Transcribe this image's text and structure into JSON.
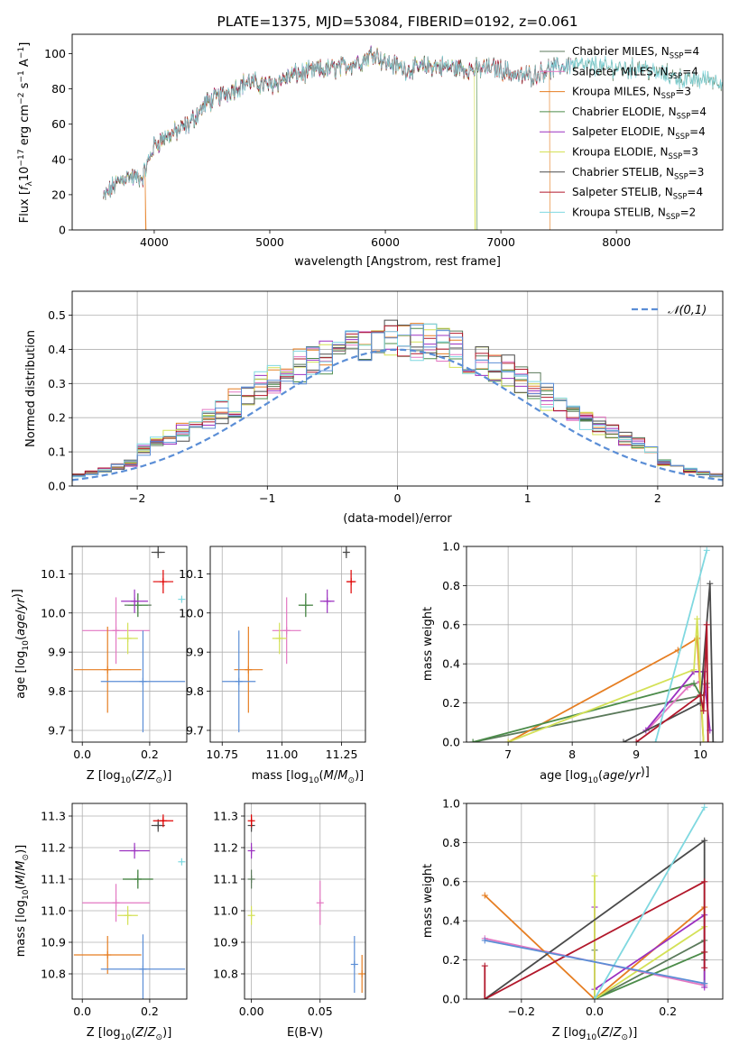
{
  "chart_data": [
    {
      "id": "spectrum",
      "type": "line",
      "title": "PLATE=1375, MJD=53084, FIBERID=0192, z=0.061",
      "xlabel": "wavelength [Angstrom, rest frame]",
      "ylabel_parts": [
        "Flux [",
        "f",
        "λ",
        "10",
        "−17",
        " erg cm",
        "−2",
        " s",
        "−1",
        " A",
        "−1",
        "]"
      ],
      "xlim": [
        3290,
        8920
      ],
      "ylim": [
        0,
        111
      ],
      "xticks": [
        4000,
        5000,
        6000,
        7000,
        8000
      ],
      "yticks": [
        0,
        20,
        40,
        60,
        80,
        100
      ],
      "legend_position": "upper right",
      "curve_anchors": {
        "x": [
          3560,
          3650,
          3750,
          3900,
          4000,
          4100,
          4200,
          4300,
          4450,
          4600,
          4800,
          5000,
          5200,
          5400,
          5600,
          5800,
          5900,
          6000,
          6200,
          6400,
          6600,
          6800,
          6950,
          7050,
          7150,
          7300,
          7400,
          7500,
          7600,
          7700,
          7800,
          7900,
          8000,
          8100,
          8200,
          8300,
          8400,
          8500,
          8600,
          8700,
          8800,
          8920
        ],
        "y": [
          18,
          25,
          30,
          30,
          48,
          53,
          56,
          60,
          72,
          77,
          84,
          82,
          88,
          90,
          92,
          96,
          101,
          95,
          91,
          93,
          92,
          91,
          92,
          90,
          87,
          88,
          91,
          92,
          94,
          93,
          93,
          92,
          92,
          91,
          93,
          90,
          88,
          87,
          85,
          85,
          86,
          84
        ]
      },
      "series": [
        {
          "name": "Chabrier MILES, N_SSP=4",
          "label": [
            "Chabrier MILES, N",
            "SSP",
            "=4"
          ],
          "color": "#5b7a5b",
          "x_range": [
            3560,
            8920
          ]
        },
        {
          "name": "Salpeter MILES, N_SSP=4",
          "label": [
            "Salpeter MILES, N",
            "SSP",
            "=4"
          ],
          "color": "#e377c2",
          "x_range": [
            3560,
            7610
          ]
        },
        {
          "name": "Kroupa MILES, N_SSP=3",
          "label": [
            "Kroupa MILES, N",
            "SSP",
            "=3"
          ],
          "color": "#e67e22",
          "x_range": [
            3560,
            7420
          ],
          "drops": [
            [
              3920,
              0
            ],
            [
              7420,
              0
            ]
          ]
        },
        {
          "name": "Chabrier ELODIE, N_SSP=4",
          "label": [
            "Chabrier ELODIE, N",
            "SSP",
            "=4"
          ],
          "color": "#4c8c4a",
          "x_range": [
            3560,
            6790
          ],
          "drops": [
            [
              6790,
              0
            ]
          ]
        },
        {
          "name": "Salpeter ELODIE, N_SSP=4",
          "label": [
            "Salpeter ELODIE, N",
            "SSP",
            "=4"
          ],
          "color": "#9b30c0",
          "x_range": [
            3560,
            6790
          ]
        },
        {
          "name": "Kroupa ELODIE, N_SSP=3",
          "label": [
            "Kroupa ELODIE, N",
            "SSP",
            "=3"
          ],
          "color": "#d4e157",
          "x_range": [
            3560,
            6790
          ],
          "drops": [
            [
              6770,
              0
            ]
          ]
        },
        {
          "name": "Chabrier STELIB, N_SSP=3",
          "label": [
            "Chabrier STELIB, N",
            "SSP",
            "=3"
          ],
          "color": "#4a4a4a",
          "x_range": [
            3560,
            7600
          ]
        },
        {
          "name": "Salpeter STELIB, N_SSP=4",
          "label": [
            "Salpeter STELIB, N",
            "SSP",
            "=4"
          ],
          "color": "#b2182b",
          "x_range": [
            3560,
            7400
          ]
        },
        {
          "name": "Kroupa STELIB, N_SSP=2",
          "label": [
            "Kroupa STELIB, N",
            "SSP",
            "=2"
          ],
          "color": "#7fd8e0",
          "x_range": [
            3560,
            8920
          ]
        }
      ]
    },
    {
      "id": "residual_hist",
      "type": "area",
      "xlabel": "(data-model)/error",
      "ylabel": "Normed distribution",
      "xlim": [
        -2.5,
        2.5
      ],
      "ylim": [
        0,
        0.57
      ],
      "xticks": [
        -2,
        -1,
        0,
        1,
        2
      ],
      "yticks": [
        0.0,
        0.1,
        0.2,
        0.3,
        0.4,
        0.5
      ],
      "grid": true,
      "reference_curve": {
        "name": "𝒩(0,1)",
        "mu": 0,
        "sigma": 1,
        "color": "#5b8ed6"
      },
      "bin_width": 0.1,
      "legend_position": "upper right"
    },
    {
      "id": "age_vs_Z",
      "type": "scatter",
      "xlabel": "Z [log10(Z/Z⊙)]",
      "ylabel": "age  [log10(age/yr)]",
      "xlim": [
        -0.03,
        0.31
      ],
      "ylim": [
        9.67,
        10.17
      ],
      "xticks": [
        0.0,
        0.2
      ],
      "yticks": [
        9.7,
        9.8,
        9.9,
        10.0,
        10.1
      ],
      "grid": true,
      "points": [
        {
          "series": "Chabrier MILES",
          "x": 0.165,
          "y": 10.02,
          "xerr": 0.04,
          "yerr": 0.03,
          "color": "#5b7a5b"
        },
        {
          "series": "Salpeter MILES",
          "x": 0.1,
          "y": 9.955,
          "xerr": 0.1,
          "yerr": 0.085,
          "color": "#e377c2"
        },
        {
          "series": "Kroupa MILES",
          "x": 0.075,
          "y": 9.855,
          "xerr": 0.1,
          "yerr": 0.11,
          "color": "#e67e22"
        },
        {
          "series": "Chabrier ELODIE",
          "x": 0.165,
          "y": 10.02,
          "xerr": 0.03,
          "yerr": 0.03,
          "color": "#4c8c4a"
        },
        {
          "series": "Salpeter ELODIE",
          "x": 0.155,
          "y": 10.03,
          "xerr": 0.04,
          "yerr": 0.03,
          "color": "#9b30c0"
        },
        {
          "series": "Kroupa ELODIE",
          "x": 0.135,
          "y": 9.935,
          "xerr": 0.03,
          "yerr": 0.04,
          "color": "#d4e157"
        },
        {
          "series": "Chabrier STELIB",
          "x": 0.225,
          "y": 10.155,
          "xerr": 0.02,
          "yerr": 0.015,
          "color": "#4a4a4a"
        },
        {
          "series": "Salpeter STELIB",
          "x": 0.24,
          "y": 10.08,
          "xerr": 0.03,
          "yerr": 0.03,
          "color": "#e00000"
        },
        {
          "series": "Kroupa MILES (low)",
          "x": 0.18,
          "y": 9.825,
          "xerr": 0.125,
          "yerr": 0.13,
          "color": "#5b8ed6"
        },
        {
          "series": "Kroupa STELIB",
          "x": 0.295,
          "y": 10.035,
          "xerr": 0.003,
          "yerr": 0.002,
          "color": "#7fd8e0"
        }
      ]
    },
    {
      "id": "age_vs_mass",
      "type": "scatter",
      "xlabel": "mass [log10(M/M⊙)]",
      "xlim": [
        10.7,
        11.35
      ],
      "ylim": [
        9.67,
        10.17
      ],
      "xticks": [
        10.75,
        11.0,
        11.25
      ],
      "yticks": [
        9.7,
        9.8,
        9.9,
        10.0,
        10.1
      ],
      "grid": true,
      "points": [
        {
          "series": "Chabrier MILES",
          "x": 11.1,
          "y": 10.02,
          "xerr": 0.03,
          "yerr": 0.03,
          "color": "#5b7a5b"
        },
        {
          "series": "Salpeter MILES",
          "x": 11.02,
          "y": 9.955,
          "xerr": 0.06,
          "yerr": 0.085,
          "color": "#e377c2"
        },
        {
          "series": "Kroupa MILES",
          "x": 10.86,
          "y": 9.855,
          "xerr": 0.06,
          "yerr": 0.11,
          "color": "#e67e22"
        },
        {
          "series": "Chabrier ELODIE",
          "x": 11.1,
          "y": 10.02,
          "xerr": 0.03,
          "yerr": 0.03,
          "color": "#4c8c4a"
        },
        {
          "series": "Salpeter ELODIE",
          "x": 11.19,
          "y": 10.03,
          "xerr": 0.03,
          "yerr": 0.03,
          "color": "#9b30c0"
        },
        {
          "series": "Kroupa ELODIE",
          "x": 10.99,
          "y": 9.935,
          "xerr": 0.03,
          "yerr": 0.04,
          "color": "#d4e157"
        },
        {
          "series": "Chabrier STELIB",
          "x": 11.27,
          "y": 10.155,
          "xerr": 0.01,
          "yerr": 0.015,
          "color": "#4a4a4a"
        },
        {
          "series": "Salpeter STELIB",
          "x": 11.29,
          "y": 10.08,
          "xerr": 0.02,
          "yerr": 0.03,
          "color": "#e00000"
        },
        {
          "series": "Kroupa MILES (low)",
          "x": 10.82,
          "y": 9.825,
          "xerr": 0.07,
          "yerr": 0.13,
          "color": "#5b8ed6"
        }
      ]
    },
    {
      "id": "weight_vs_age",
      "type": "line",
      "xlabel": "age  [log10(age/yr)]",
      "ylabel": "mass weight",
      "xlim": [
        6.35,
        10.35
      ],
      "ylim": [
        0,
        1
      ],
      "xticks": [
        7,
        8,
        9,
        10
      ],
      "yticks": [
        0.0,
        0.2,
        0.4,
        0.6,
        0.8,
        1.0
      ],
      "grid": true,
      "series": [
        {
          "name": "Chabrier MILES",
          "color": "#5b7a5b",
          "x": [
            6.45,
            10.05,
            10.1
          ],
          "y": [
            0.0,
            0.24,
            0.3
          ]
        },
        {
          "name": "Salpeter MILES",
          "color": "#e377c2",
          "x": [
            9.2,
            9.8,
            10.0,
            10.1
          ],
          "y": [
            0.07,
            0.28,
            0.31,
            0.28
          ]
        },
        {
          "name": "Kroupa MILES",
          "color": "#e67e22",
          "x": [
            7.0,
            9.65,
            9.95,
            10.05
          ],
          "y": [
            0.0,
            0.47,
            0.53,
            0.0
          ]
        },
        {
          "name": "Chabrier ELODIE",
          "color": "#4c8c4a",
          "x": [
            6.45,
            9.9,
            10.0
          ],
          "y": [
            0.0,
            0.3,
            0.24
          ]
        },
        {
          "name": "Salpeter ELODIE",
          "color": "#9b30c0",
          "x": [
            9.15,
            9.9,
            10.05,
            10.15
          ],
          "y": [
            0.06,
            0.36,
            0.36,
            0.06
          ]
        },
        {
          "name": "Kroupa ELODIE",
          "color": "#d4e157",
          "x": [
            7.0,
            9.9,
            9.95,
            10.05
          ],
          "y": [
            0.0,
            0.37,
            0.63,
            0.0
          ]
        },
        {
          "name": "Chabrier STELIB",
          "color": "#4a4a4a",
          "x": [
            8.8,
            10.0,
            10.15,
            10.2
          ],
          "y": [
            0.0,
            0.2,
            0.81,
            0.0
          ]
        },
        {
          "name": "Salpeter STELIB",
          "color": "#b2182b",
          "x": [
            9.0,
            10.0,
            10.05,
            10.1,
            10.12
          ],
          "y": [
            0.0,
            0.24,
            0.16,
            0.6,
            0.0
          ]
        },
        {
          "name": "Kroupa STELIB",
          "color": "#7fd8e0",
          "x": [
            9.3,
            10.1
          ],
          "y": [
            0.0,
            0.98
          ]
        }
      ]
    },
    {
      "id": "mass_vs_Z",
      "type": "scatter",
      "xlabel": "Z [log10(Z/Z⊙)]",
      "ylabel": "mass [log10(M/M⊙)]",
      "xlim": [
        -0.03,
        0.31
      ],
      "ylim": [
        10.72,
        11.34
      ],
      "xticks": [
        0.0,
        0.2
      ],
      "yticks": [
        10.8,
        10.9,
        11.0,
        11.1,
        11.2,
        11.3
      ],
      "grid": true,
      "points": [
        {
          "series": "Chabrier MILES",
          "x": 0.165,
          "y": 11.1,
          "xerr": 0.045,
          "yerr": 0.03,
          "color": "#5b7a5b"
        },
        {
          "series": "Salpeter MILES",
          "x": 0.1,
          "y": 11.025,
          "xerr": 0.1,
          "yerr": 0.06,
          "color": "#e377c2"
        },
        {
          "series": "Kroupa MILES",
          "x": 0.075,
          "y": 10.86,
          "xerr": 0.1,
          "yerr": 0.06,
          "color": "#e67e22"
        },
        {
          "series": "Chabrier ELODIE",
          "x": 0.165,
          "y": 11.1,
          "xerr": 0.045,
          "yerr": 0.03,
          "color": "#4c8c4a"
        },
        {
          "series": "Salpeter ELODIE",
          "x": 0.155,
          "y": 11.19,
          "xerr": 0.045,
          "yerr": 0.025,
          "color": "#9b30c0"
        },
        {
          "series": "Kroupa ELODIE",
          "x": 0.135,
          "y": 10.985,
          "xerr": 0.03,
          "yerr": 0.03,
          "color": "#d4e157"
        },
        {
          "series": "Chabrier STELIB",
          "x": 0.225,
          "y": 11.27,
          "xerr": 0.02,
          "yerr": 0.02,
          "color": "#4a4a4a"
        },
        {
          "series": "Salpeter STELIB",
          "x": 0.24,
          "y": 11.285,
          "xerr": 0.03,
          "yerr": 0.02,
          "color": "#e00000"
        },
        {
          "series": "Kroupa MILES (low)",
          "x": 0.18,
          "y": 10.815,
          "xerr": 0.125,
          "yerr": 0.11,
          "color": "#5b8ed6"
        },
        {
          "series": "Kroupa STELIB",
          "x": 0.295,
          "y": 11.155,
          "xerr": 0.003,
          "yerr": 0.002,
          "color": "#7fd8e0"
        }
      ]
    },
    {
      "id": "mass_vs_ebv",
      "type": "scatter",
      "xlabel": "E(B-V)",
      "xlim": [
        -0.005,
        0.083
      ],
      "ylim": [
        10.72,
        11.34
      ],
      "xticks": [
        0.0,
        0.05
      ],
      "yticks": [
        10.8,
        10.9,
        11.0,
        11.1,
        11.2,
        11.3
      ],
      "grid": true,
      "points": [
        {
          "series": "Chabrier MILES",
          "x": 0.0,
          "y": 11.1,
          "yerr": 0.03,
          "color": "#5b7a5b"
        },
        {
          "series": "Salpeter MILES",
          "x": 0.05,
          "y": 11.025,
          "yerr": 0.07,
          "color": "#e377c2"
        },
        {
          "series": "Kroupa MILES",
          "x": 0.0805,
          "y": 10.8,
          "yerr": 0.06,
          "color": "#e67e22"
        },
        {
          "series": "Salpeter ELODIE",
          "x": 0.0,
          "y": 11.19,
          "yerr": 0.025,
          "color": "#9b30c0"
        },
        {
          "series": "Kroupa ELODIE",
          "x": 0.0,
          "y": 10.985,
          "yerr": 0.03,
          "color": "#d4e157"
        },
        {
          "series": "Chabrier STELIB",
          "x": 0.0,
          "y": 11.27,
          "yerr": 0.02,
          "color": "#4a4a4a"
        },
        {
          "series": "Salpeter STELIB",
          "x": 0.0,
          "y": 11.285,
          "yerr": 0.02,
          "color": "#e00000"
        },
        {
          "series": "Kroupa MILES (low)",
          "x": 0.075,
          "y": 10.83,
          "yerr": 0.09,
          "color": "#5b8ed6"
        }
      ]
    },
    {
      "id": "weight_vs_Z",
      "type": "line",
      "xlabel": "Z [log10(Z/Z⊙)]",
      "ylabel": "mass weight",
      "xlim": [
        -0.35,
        0.35
      ],
      "ylim": [
        0,
        1
      ],
      "xticks": [
        -0.2,
        0.0,
        0.2
      ],
      "yticks": [
        0.0,
        0.2,
        0.4,
        0.6,
        0.8,
        1.0
      ],
      "grid": true,
      "series": [
        {
          "name": "Chabrier MILES",
          "color": "#5b7a5b",
          "x": [
            0.0,
            0.0,
            0.3,
            0.3
          ],
          "y": [
            0.25,
            0.0,
            0.3,
            0.08
          ]
        },
        {
          "name": "Salpeter MILES",
          "color": "#e377c2",
          "x": [
            -0.3,
            0.3
          ],
          "y": [
            0.31,
            0.07
          ]
        },
        {
          "name": "Kroupa MILES",
          "color": "#e67e22",
          "x": [
            -0.3,
            0.0,
            0.3
          ],
          "y": [
            0.53,
            0.0,
            0.47
          ]
        },
        {
          "name": "Chabrier ELODIE",
          "color": "#4c8c4a",
          "x": [
            0.0,
            0.3
          ],
          "y": [
            0.0,
            0.24
          ]
        },
        {
          "name": "Salpeter ELODIE",
          "color": "#9b30c0",
          "x": [
            0.0,
            0.0,
            0.3,
            0.3
          ],
          "y": [
            0.47,
            0.05,
            0.43,
            0.06
          ]
        },
        {
          "name": "Kroupa ELODIE",
          "color": "#d4e157",
          "x": [
            0.0,
            0.0,
            0.3
          ],
          "y": [
            0.63,
            0.0,
            0.37
          ]
        },
        {
          "name": "Chabrier STELIB",
          "color": "#4a4a4a",
          "x": [
            -0.3,
            0.3,
            0.3
          ],
          "y": [
            0.0,
            0.81,
            0.2
          ]
        },
        {
          "name": "Salpeter STELIB",
          "color": "#b2182b",
          "x": [
            -0.3,
            -0.3,
            0.3,
            0.3,
            0.3
          ],
          "y": [
            0.17,
            0.0,
            0.6,
            0.24,
            0.16
          ]
        },
        {
          "name": "Kroupa STELIB",
          "color": "#7fd8e0",
          "x": [
            0.0,
            0.3
          ],
          "y": [
            0.0,
            0.98
          ]
        },
        {
          "name": "Kroupa MILES (blue)",
          "color": "#5b8ed6",
          "x": [
            -0.3,
            0.3
          ],
          "y": [
            0.3,
            0.08
          ]
        }
      ]
    }
  ]
}
